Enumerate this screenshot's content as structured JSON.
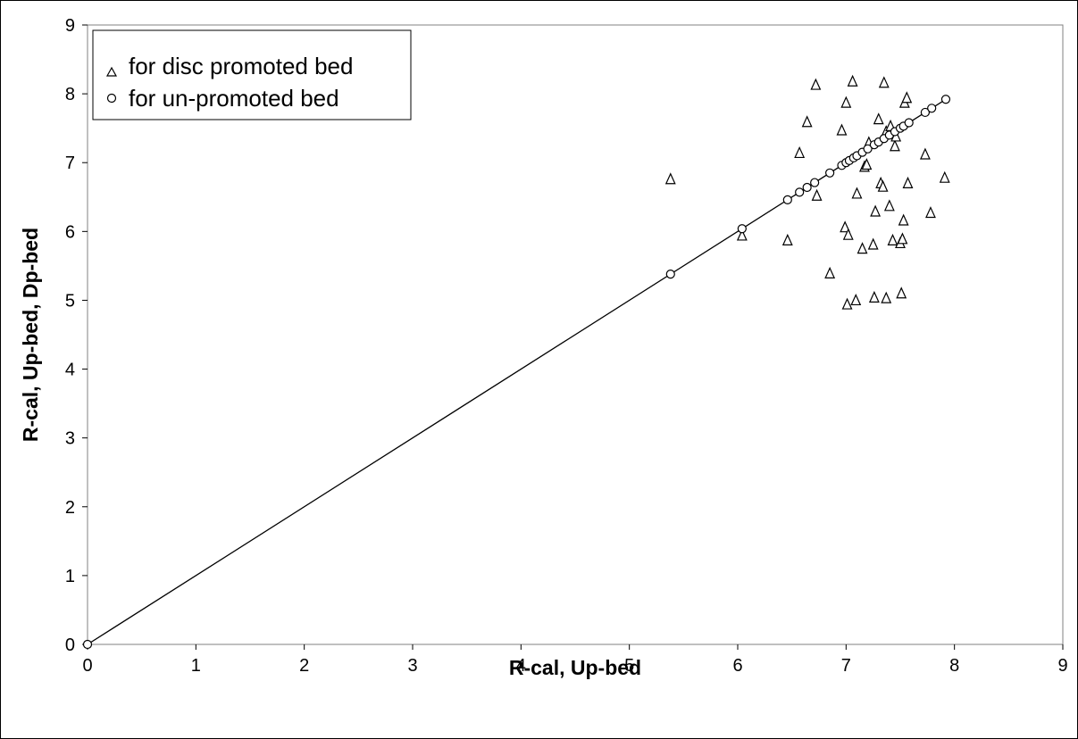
{
  "chart_data": {
    "type": "scatter",
    "xlabel": "R-cal, Up-bed",
    "ylabel": "R-cal, Up-bed, Dp-bed",
    "xlim": [
      0,
      9
    ],
    "ylim": [
      0,
      9
    ],
    "xticks": [
      "0",
      "1",
      "2",
      "3",
      "4",
      "5",
      "6",
      "7",
      "8",
      "9"
    ],
    "yticks": [
      "0",
      "1",
      "2",
      "3",
      "4",
      "5",
      "6",
      "7",
      "8",
      "9"
    ],
    "grid": false,
    "legend_position": "top-left",
    "series": [
      {
        "name": "for disc promoted bed",
        "marker": "triangle",
        "x": [
          5.38,
          6.04,
          6.46,
          6.57,
          6.64,
          6.72,
          6.73,
          6.85,
          6.96,
          6.99,
          7.0,
          7.01,
          7.02,
          7.06,
          7.09,
          7.1,
          7.15,
          7.17,
          7.19,
          7.21,
          7.25,
          7.26,
          7.27,
          7.3,
          7.32,
          7.34,
          7.35,
          7.37,
          7.37,
          7.4,
          7.41,
          7.43,
          7.45,
          7.46,
          7.5,
          7.51,
          7.52,
          7.53,
          7.54,
          7.56,
          7.57,
          7.73,
          7.78,
          7.91
        ],
        "y": [
          6.76,
          5.94,
          5.87,
          7.14,
          7.59,
          8.13,
          6.52,
          5.39,
          7.47,
          6.06,
          7.87,
          4.94,
          5.95,
          8.18,
          5.0,
          6.55,
          5.75,
          6.94,
          6.97,
          7.29,
          5.81,
          5.04,
          6.29,
          7.63,
          6.7,
          6.65,
          8.16,
          7.45,
          5.03,
          6.37,
          7.53,
          5.87,
          7.24,
          7.38,
          5.83,
          5.1,
          5.89,
          6.16,
          7.87,
          7.94,
          6.7,
          7.12,
          6.27,
          6.78
        ]
      },
      {
        "name": "for un-promoted bed",
        "marker": "circle",
        "x": [
          0,
          5.38,
          6.04,
          6.46,
          6.57,
          6.64,
          6.71,
          6.85,
          6.96,
          7.0,
          7.03,
          7.07,
          7.1,
          7.15,
          7.2,
          7.26,
          7.3,
          7.35,
          7.4,
          7.45,
          7.5,
          7.53,
          7.58,
          7.73,
          7.79,
          7.92
        ],
        "y": [
          0,
          5.38,
          6.04,
          6.46,
          6.57,
          6.64,
          6.71,
          6.85,
          6.96,
          7.0,
          7.03,
          7.07,
          7.1,
          7.15,
          7.2,
          7.26,
          7.3,
          7.35,
          7.4,
          7.45,
          7.5,
          7.53,
          7.58,
          7.73,
          7.79,
          7.92
        ]
      }
    ],
    "reference_line": {
      "x": [
        0,
        7.92
      ],
      "y": [
        0,
        7.92
      ]
    }
  }
}
